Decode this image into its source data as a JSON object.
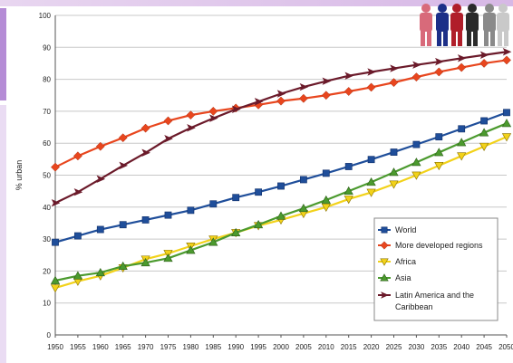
{
  "chart_data": {
    "type": "line",
    "title": "",
    "xlabel": "",
    "ylabel": "% urban",
    "ylim": [
      0,
      100
    ],
    "yticks": [
      0,
      10,
      20,
      30,
      40,
      50,
      60,
      70,
      80,
      90,
      100
    ],
    "x": [
      1950,
      1955,
      1960,
      1965,
      1970,
      1975,
      1980,
      1985,
      1990,
      1995,
      2000,
      2005,
      2010,
      2015,
      2020,
      2025,
      2030,
      2035,
      2040,
      2045,
      2050
    ],
    "grid": true,
    "legend_position": "bottom-right",
    "series": [
      {
        "name": "World",
        "color": "#1f4e9a",
        "marker": "square",
        "values": [
          29,
          31,
          33,
          34.5,
          36,
          37.5,
          39,
          41,
          43,
          44.7,
          46.6,
          48.6,
          50.6,
          52.7,
          54.9,
          57.2,
          59.6,
          62,
          64.5,
          67,
          69.6
        ]
      },
      {
        "name": "More developed regions",
        "color": "#e8461e",
        "marker": "diamond",
        "values": [
          52.5,
          56,
          59,
          61.7,
          64.7,
          67,
          68.8,
          70,
          71,
          72,
          73.2,
          74,
          75,
          76.2,
          77.5,
          79,
          80.7,
          82.3,
          83.7,
          85,
          86
        ]
      },
      {
        "name": "Africa",
        "color": "#f2d21a",
        "marker": "triangle-down",
        "values": [
          14.7,
          16.8,
          18.5,
          21,
          23.7,
          25.5,
          27.8,
          30,
          32,
          34.2,
          36,
          38,
          40,
          42.5,
          44.6,
          47.2,
          50,
          53,
          56,
          59,
          62
        ]
      },
      {
        "name": "Asia",
        "color": "#4b9a2e",
        "marker": "triangle-up",
        "values": [
          17,
          18.5,
          19.5,
          21.5,
          22.6,
          24,
          26.5,
          29,
          32,
          34.5,
          37.2,
          39.6,
          42.2,
          45,
          47.8,
          50.9,
          54,
          57.1,
          60.2,
          63.3,
          66.2
        ]
      },
      {
        "name": "Latin America and the Caribbean",
        "color": "#6b1a2a",
        "marker": "arrow-right",
        "values": [
          41.3,
          44.7,
          48.8,
          53,
          57,
          61.4,
          64.8,
          67.8,
          70.6,
          73,
          75.5,
          77.6,
          79.4,
          81.1,
          82.3,
          83.4,
          84.5,
          85.5,
          86.6,
          87.6,
          88.6
        ]
      }
    ]
  }
}
